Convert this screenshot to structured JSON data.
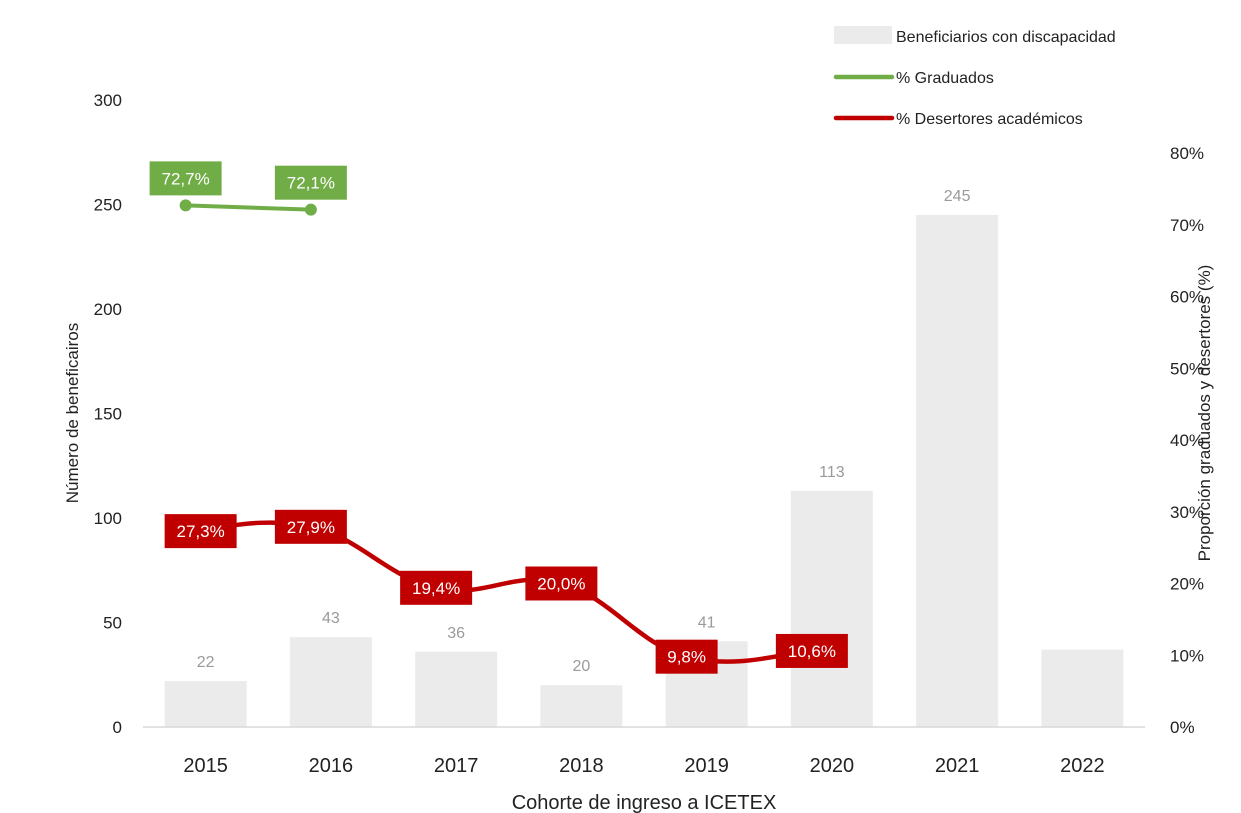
{
  "chart_data": {
    "type": "bar",
    "title": "",
    "xlabel": "Cohorte de ingreso a ICETEX",
    "ylabel": "Número de beneficairos",
    "y2label": "Proporción graduados y desertores (%)",
    "categories": [
      "2015",
      "2016",
      "2017",
      "2018",
      "2019",
      "2020",
      "2021",
      "2022"
    ],
    "ylim": [
      0,
      300
    ],
    "y_ticks": [
      "0",
      "50",
      "100",
      "150",
      "200",
      "250",
      "300"
    ],
    "y2lim": [
      0,
      80
    ],
    "y2_ticks": [
      "0%",
      "10%",
      "20%",
      "30%",
      "40%",
      "50%",
      "60%",
      "70%",
      "80%"
    ],
    "grid": false,
    "legend_position": "top-right",
    "series": [
      {
        "name": "Beneficiarios con discapacidad",
        "type": "bar",
        "axis": "left",
        "color": "#ebebeb",
        "values": [
          22,
          43,
          36,
          20,
          41,
          113,
          245,
          37
        ],
        "labels": [
          "22",
          "43",
          "36",
          "20",
          "41",
          "113",
          "245",
          null
        ]
      },
      {
        "name": "% Graduados",
        "type": "line",
        "axis": "right",
        "color": "#70ad47",
        "values": [
          72.7,
          72.1,
          null,
          null,
          null,
          null,
          null,
          null
        ],
        "labels": [
          "72,7%",
          "72,1%",
          null,
          null,
          null,
          null,
          null,
          null
        ]
      },
      {
        "name": "% Desertores académicos",
        "type": "line",
        "axis": "right",
        "color": "#c00000",
        "values": [
          27.3,
          27.9,
          19.4,
          20.0,
          9.8,
          10.6,
          null,
          null
        ],
        "labels": [
          "27,3%",
          "27,9%",
          "19,4%",
          "20,0%",
          "9,8%",
          "10,6%",
          null,
          null
        ]
      }
    ]
  }
}
